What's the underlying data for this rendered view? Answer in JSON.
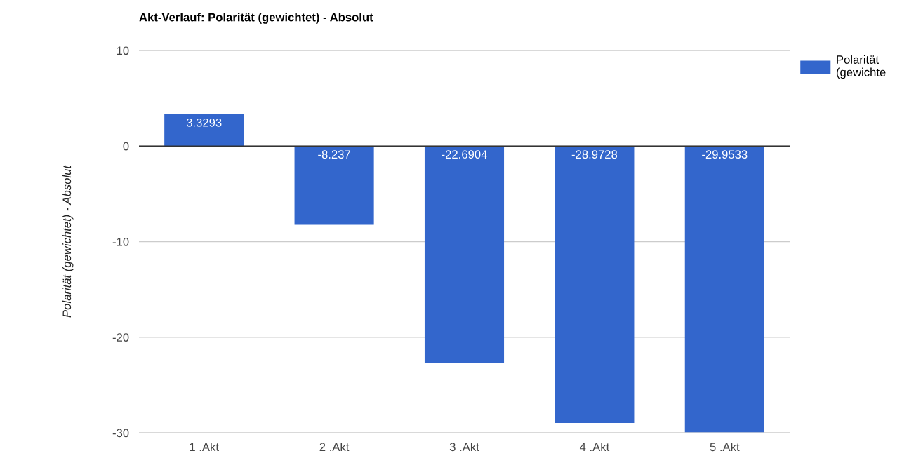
{
  "chart_data": {
    "type": "bar",
    "title": "Akt-Verlauf: Polarität (gewichtet) - Absolut",
    "ylabel": "Polarität (gewichtet) - Absolut",
    "categories": [
      "1 .Akt",
      "2 .Akt",
      "3 .Akt",
      "4 .Akt",
      "5 .Akt"
    ],
    "series": [
      {
        "name": "Polarität\n(gewichte",
        "color": "#3366cc",
        "values": [
          3.3293,
          -8.237,
          -22.6904,
          -28.9728,
          -29.9533
        ]
      }
    ],
    "ylim": [
      -30,
      10
    ],
    "yticks": [
      -30,
      -20,
      -10,
      0,
      10
    ],
    "grid": "y",
    "legend": "top right",
    "data_labels": true
  }
}
